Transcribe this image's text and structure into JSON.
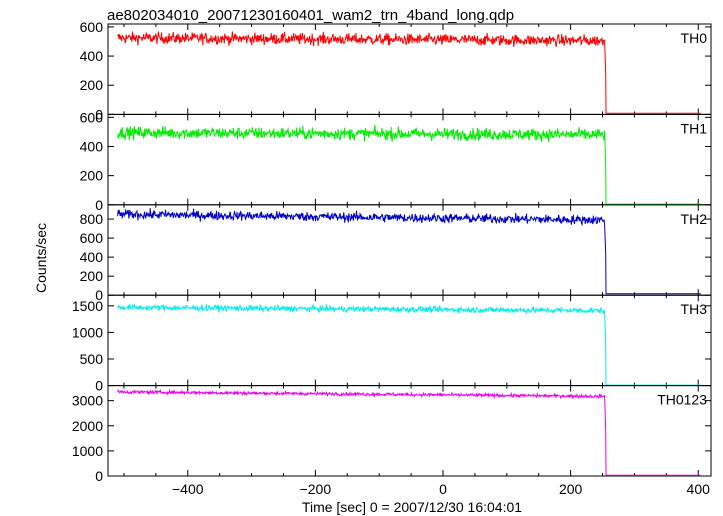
{
  "chart_data": {
    "type": "line",
    "title": "ae802034010_20071230160401_wam2_trn_4band_long.qdp",
    "xlabel": "Time [sec] 0 = 2007/12/30 16:04:01",
    "ylabel": "Counts/sec",
    "xlim": [
      -525,
      420
    ],
    "x_ticks": [
      {
        "value": -400,
        "label": "−400"
      },
      {
        "value": -200,
        "label": "−200"
      },
      {
        "value": 0,
        "label": "0"
      },
      {
        "value": 200,
        "label": "200"
      },
      {
        "value": 400,
        "label": "400"
      }
    ],
    "drop_time": 254,
    "x_start": -510,
    "x_end": 404,
    "panels": [
      {
        "name": "TH0",
        "color": "#ff0000",
        "ylim": [
          0,
          620
        ],
        "y_ticks": [
          0,
          200,
          400,
          600
        ],
        "series": [
          {
            "name": "TH0",
            "level_start": 525,
            "level_end": 505,
            "noise": 28,
            "post_level": 8
          }
        ]
      },
      {
        "name": "TH1",
        "color": "#00ee00",
        "ylim": [
          0,
          620
        ],
        "y_ticks": [
          0,
          200,
          400,
          600
        ],
        "series": [
          {
            "name": "TH1",
            "level_start": 495,
            "level_end": 480,
            "noise": 30,
            "post_level": 5
          }
        ]
      },
      {
        "name": "TH2",
        "color": "#0000cc",
        "ylim": [
          0,
          950
        ],
        "y_ticks": [
          0,
          200,
          400,
          600,
          800
        ],
        "series": [
          {
            "name": "TH2",
            "level_start": 850,
            "level_end": 790,
            "noise": 35,
            "post_level": 15
          }
        ]
      },
      {
        "name": "TH3",
        "color": "#00eeee",
        "ylim": [
          0,
          1700
        ],
        "y_ticks": [
          0,
          500,
          1000,
          1500
        ],
        "series": [
          {
            "name": "TH3",
            "level_start": 1470,
            "level_end": 1410,
            "noise": 40,
            "post_level": 10
          }
        ]
      },
      {
        "name": "TH0123",
        "color": "#ee00ee",
        "ylim": [
          0,
          3600
        ],
        "y_ticks": [
          0,
          1000,
          2000,
          3000
        ],
        "series": [
          {
            "name": "TH0123",
            "level_start": 3350,
            "level_end": 3170,
            "noise": 45,
            "post_level": 30
          }
        ]
      }
    ]
  }
}
